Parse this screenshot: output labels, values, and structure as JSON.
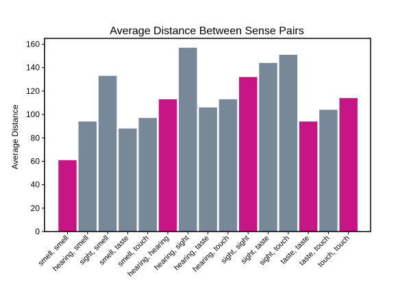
{
  "chart_data": {
    "type": "bar",
    "title": "Average Distance Between Sense Pairs",
    "xlabel": "",
    "ylabel": "Average Distance",
    "ylim": [
      0,
      165
    ],
    "yticks": [
      0,
      20,
      40,
      60,
      80,
      100,
      120,
      140,
      160
    ],
    "grid": false,
    "legend": "none",
    "colors": {
      "same_sense": "#c71585",
      "cross_sense": "#778899"
    },
    "categories": [
      "smell, smell",
      "hearing, smell",
      "sight, smell",
      "smell, taste",
      "smell, touch",
      "hearing, hearing",
      "hearing, sight",
      "hearing, taste",
      "hearing, touch",
      "sight, sight",
      "sight, taste",
      "sight, touch",
      "taste, taste",
      "taste, touch",
      "touch, touch"
    ],
    "values": [
      61,
      94,
      133,
      88,
      97,
      113,
      157,
      106,
      113,
      132,
      144,
      151,
      94,
      104,
      114
    ],
    "bar_groups": [
      "same_sense",
      "cross_sense",
      "cross_sense",
      "cross_sense",
      "cross_sense",
      "same_sense",
      "cross_sense",
      "cross_sense",
      "cross_sense",
      "same_sense",
      "cross_sense",
      "cross_sense",
      "same_sense",
      "cross_sense",
      "same_sense"
    ]
  }
}
